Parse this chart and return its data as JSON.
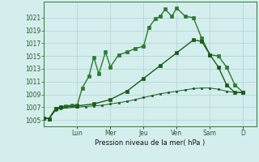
{
  "background_color": "#d4eeed",
  "grid_color": "#b2d8d4",
  "ylabel": "Pression niveau de la mer( hPa )",
  "ylim": [
    1004.0,
    1023.5
  ],
  "yticks": [
    1005,
    1007,
    1009,
    1011,
    1013,
    1015,
    1017,
    1019,
    1021
  ],
  "day_labels": [
    "Lun",
    "Mer",
    "Jeu",
    "Ven",
    "Sam",
    "D"
  ],
  "day_positions": [
    2,
    4,
    6,
    8,
    10,
    12
  ],
  "xlim": [
    0,
    12.8
  ],
  "series": [
    {
      "x": [
        0,
        0.3,
        0.7,
        1.0,
        1.3,
        1.7,
        2.0,
        2.3,
        2.7,
        3.0,
        3.3,
        3.7,
        4.0,
        4.5,
        5.0,
        5.5,
        6.0,
        6.3,
        6.7,
        7.0,
        7.3,
        7.7,
        8.0,
        8.5,
        9.0,
        9.5,
        10.0,
        10.5,
        11.0,
        11.5,
        12.0
      ],
      "y": [
        1005.3,
        1005.2,
        1006.8,
        1007.0,
        1007.2,
        1007.3,
        1007.3,
        1010.0,
        1011.8,
        1014.8,
        1012.2,
        1015.6,
        1013.3,
        1015.2,
        1015.6,
        1016.2,
        1016.5,
        1019.4,
        1020.8,
        1021.2,
        1022.3,
        1021.2,
        1022.5,
        1021.2,
        1021.0,
        1017.8,
        1015.2,
        1015.0,
        1013.3,
        1010.5,
        1009.3
      ],
      "color": "#2d7a2d",
      "marker": "s",
      "markersize": 2.5,
      "linewidth": 1.0
    },
    {
      "x": [
        0,
        0.3,
        0.7,
        1.0,
        2.0,
        3.0,
        4.0,
        5.0,
        6.0,
        7.0,
        8.0,
        9.0,
        9.5,
        10.0,
        10.5,
        11.0,
        11.5,
        12.0
      ],
      "y": [
        1005.3,
        1005.2,
        1006.8,
        1007.0,
        1007.2,
        1007.5,
        1008.2,
        1009.5,
        1011.5,
        1013.5,
        1015.5,
        1017.5,
        1017.3,
        1015.2,
        1013.3,
        1010.5,
        1009.3,
        1009.3
      ],
      "color": "#1a5c1a",
      "marker": "s",
      "markersize": 2.5,
      "linewidth": 1.0
    },
    {
      "x": [
        0,
        0.3,
        0.7,
        1.0,
        2.0,
        2.5,
        3.0,
        3.5,
        4.0,
        4.5,
        5.0,
        5.5,
        6.0,
        6.5,
        7.0,
        7.5,
        8.0,
        8.5,
        9.0,
        9.5,
        10.0,
        10.5,
        11.0,
        11.5,
        12.0
      ],
      "y": [
        1005.3,
        1005.2,
        1006.5,
        1006.8,
        1007.0,
        1007.1,
        1007.2,
        1007.3,
        1007.5,
        1007.7,
        1007.9,
        1008.2,
        1008.5,
        1008.8,
        1009.1,
        1009.3,
        1009.5,
        1009.7,
        1009.9,
        1010.0,
        1010.0,
        1009.8,
        1009.5,
        1009.3,
        1009.3
      ],
      "color": "#1a5c1a",
      "marker": "s",
      "markersize": 1.5,
      "linewidth": 0.7
    }
  ]
}
